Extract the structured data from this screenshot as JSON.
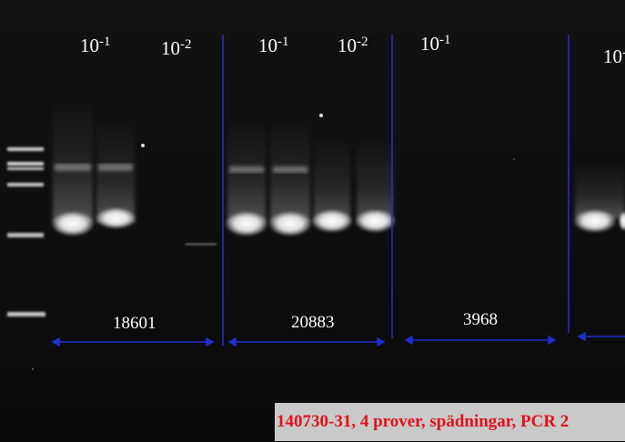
{
  "dilution_labels": [
    {
      "base": "10",
      "exp": "-1"
    },
    {
      "base": "10",
      "exp": "-2"
    },
    {
      "base": "10",
      "exp": "-1"
    },
    {
      "base": "10",
      "exp": "-2"
    },
    {
      "base": "10",
      "exp": "-1"
    },
    {
      "base": "10",
      "exp": "-"
    }
  ],
  "samples": [
    "18601",
    "20883",
    "3968"
  ],
  "caption": "140730-31, 4 prover, spädningar, PCR 2",
  "colors": {
    "gel_background": "#0d0d0d",
    "band": "#ffffff",
    "divider_line": "#2b2fc4",
    "arrow": "#1f2fd0",
    "caption_background": "#c9c9c9",
    "caption_text": "#e0111b"
  }
}
